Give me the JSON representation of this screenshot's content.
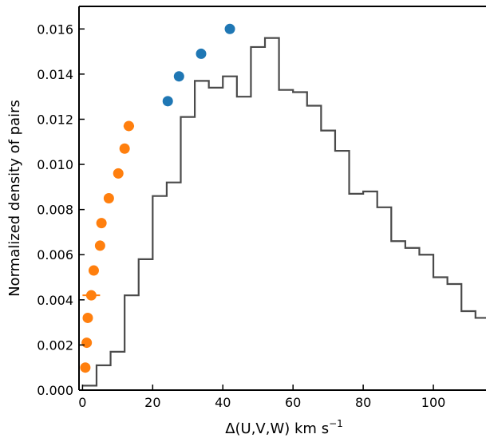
{
  "chart_data": {
    "type": "scatter",
    "title": "",
    "xlabel": "Δ(U,V,W) km s",
    "xlabel_superscript": "−1",
    "ylabel": "Normalized density of pairs",
    "xlim": [
      -1,
      115
    ],
    "ylim": [
      0,
      0.017
    ],
    "xticks": [
      0,
      20,
      40,
      60,
      80,
      100
    ],
    "xtick_labels": [
      "0",
      "20",
      "40",
      "60",
      "80",
      "100"
    ],
    "yticks": [
      0,
      0.002,
      0.004,
      0.006,
      0.008,
      0.01,
      0.012,
      0.014,
      0.016
    ],
    "ytick_labels": [
      "0.000",
      "0.002",
      "0.004",
      "0.006",
      "0.008",
      "0.010",
      "0.012",
      "0.014",
      "0.016"
    ],
    "grid": false,
    "legend": "none",
    "histogram": {
      "color": "#4a4a4a",
      "edges": [
        0,
        4,
        8,
        12,
        16,
        20,
        24,
        28,
        32,
        36,
        40,
        44,
        48,
        52,
        56,
        60,
        64,
        68,
        72,
        76,
        80,
        84,
        88,
        92,
        96,
        100,
        104,
        108,
        112,
        116
      ],
      "values": [
        0.0002,
        0.0011,
        0.0017,
        0.0042,
        0.0058,
        0.0086,
        0.0092,
        0.0121,
        0.0137,
        0.0134,
        0.0139,
        0.013,
        0.0152,
        0.0156,
        0.0133,
        0.0132,
        0.0126,
        0.0115,
        0.0106,
        0.0087,
        0.0088,
        0.0081,
        0.0066,
        0.0063,
        0.006,
        0.005,
        0.0047,
        0.0035,
        0.0032
      ]
    },
    "series": [
      {
        "color": "#ff7f0e",
        "x": [
          0.8,
          1.2,
          1.5,
          2.5,
          3.2,
          5.0,
          5.4,
          7.5,
          10.2,
          12.0,
          13.2
        ],
        "y": [
          0.001,
          0.0021,
          0.0032,
          0.0042,
          0.0053,
          0.0064,
          0.0074,
          0.0085,
          0.0096,
          0.0107,
          0.0117
        ],
        "xerr": [
          0.3,
          0.3,
          0.4,
          2.5,
          0.6,
          1.0,
          0.5,
          0.5,
          0.5,
          0.5,
          1.5
        ]
      },
      {
        "color": "#1f77b4",
        "x": [
          24.3,
          27.5,
          33.8,
          42.0
        ],
        "y": [
          0.0128,
          0.0139,
          0.0149,
          0.016
        ],
        "xerr": [
          0,
          0,
          0,
          0
        ]
      }
    ]
  }
}
